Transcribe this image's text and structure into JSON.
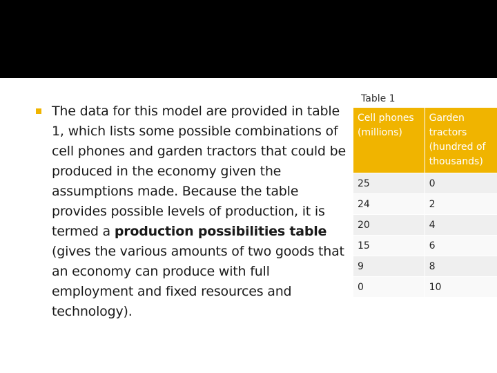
{
  "slide": {
    "bullet": {
      "text_before": "The data for this model are provided in table 1, which lists some possible combinations of cell phones and garden tractors that could be produced in the economy given the assumptions made. Because the table provides possible levels of production, it is termed a ",
      "bold_text": "production possibilities table",
      "text_after": " (gives the various amounts of two goods that an economy can produce with full employment and fixed resources and technology)."
    },
    "table": {
      "caption": "Table 1",
      "headers": [
        "Cell phones (millions)",
        "Garden tractors (hundred of thousands)"
      ],
      "rows": [
        [
          "25",
          "0"
        ],
        [
          "24",
          "2"
        ],
        [
          "20",
          "4"
        ],
        [
          "15",
          "6"
        ],
        [
          "9",
          "8"
        ],
        [
          "0",
          "10"
        ]
      ]
    },
    "colors": {
      "top_band": "#000000",
      "accent": "#f0b400",
      "background": "#ffffff"
    }
  }
}
